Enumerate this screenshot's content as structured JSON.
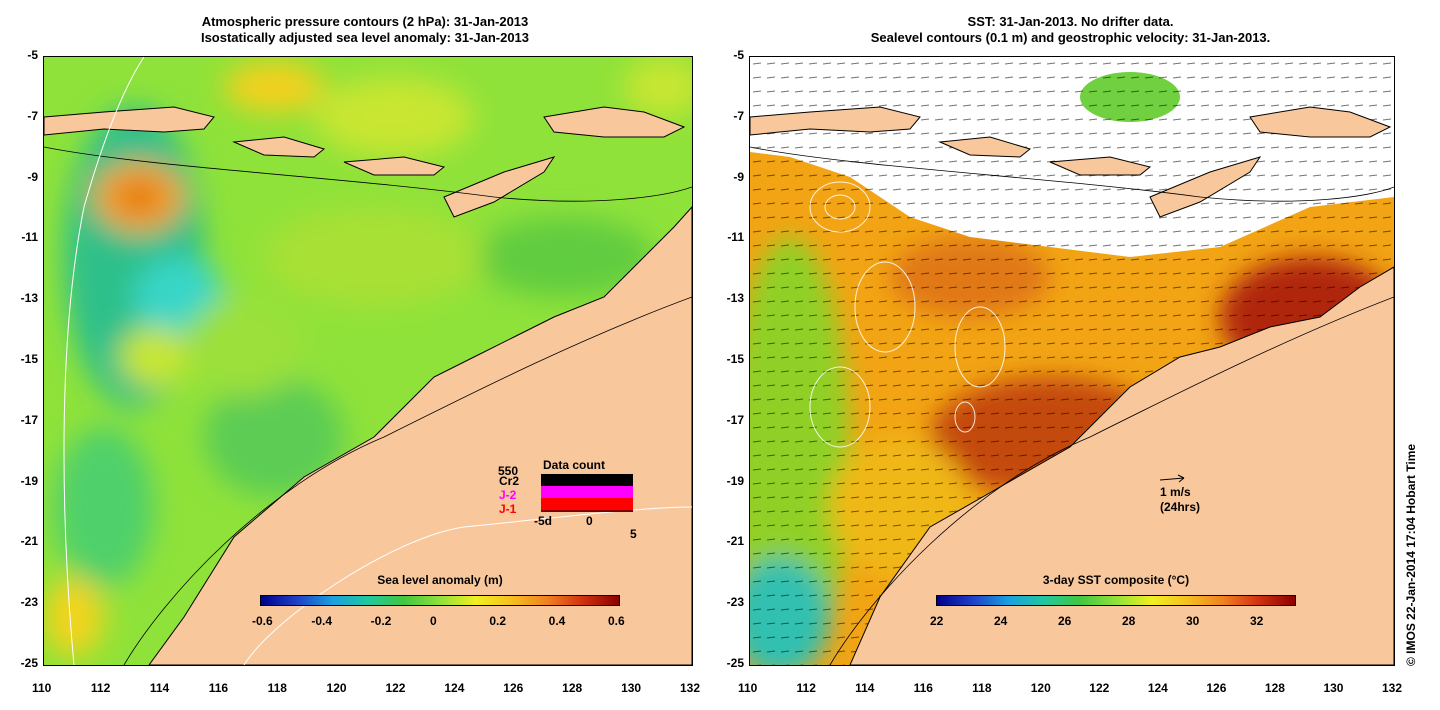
{
  "left_panel": {
    "title_line1": "Atmospheric pressure contours (2 hPa): 31-Jan-2013",
    "title_line2": "Isostatically adjusted sea level anomaly: 31-Jan-2013",
    "colorbar_title": "Sea level anomaly (m)",
    "colorbar_ticks": [
      "-0.6",
      "-0.4",
      "-0.2",
      "0",
      "0.2",
      "0.4",
      "0.6"
    ],
    "data_count": {
      "title": "Data count",
      "max_label": "550",
      "sats": [
        {
          "name": "Cr2",
          "color": "#000000"
        },
        {
          "name": "J-2",
          "color": "#ff00ff"
        },
        {
          "name": "J-1",
          "color": "#ff0000"
        }
      ],
      "axis_labels": [
        "-5d",
        "0",
        "5"
      ]
    }
  },
  "right_panel": {
    "title_line1": "SST: 31-Jan-2013. No drifter data.",
    "title_line2": "Sealevel contours (0.1 m) and geostrophic velocity: 31-Jan-2013.",
    "colorbar_title": "3-day SST composite (°C)",
    "colorbar_ticks": [
      "22",
      "24",
      "26",
      "28",
      "30",
      "32"
    ],
    "scale_label": "1 m/s",
    "scale_sub": "(24hrs)"
  },
  "axes": {
    "lat_ticks": [
      "-5",
      "-7",
      "-9",
      "-11",
      "-13",
      "-15",
      "-17",
      "-19",
      "-21",
      "-23",
      "-25"
    ],
    "lon_ticks": [
      "110",
      "112",
      "114",
      "116",
      "118",
      "120",
      "122",
      "124",
      "126",
      "128",
      "130",
      "132"
    ]
  },
  "credit": "© IMOS 22-Jan-2014 17:04 Hobart Time",
  "colors": {
    "land": "#f9c79c",
    "sla_background": "#8fe23a",
    "sst_background": "#f2a414",
    "cloud": "#ffffff"
  }
}
